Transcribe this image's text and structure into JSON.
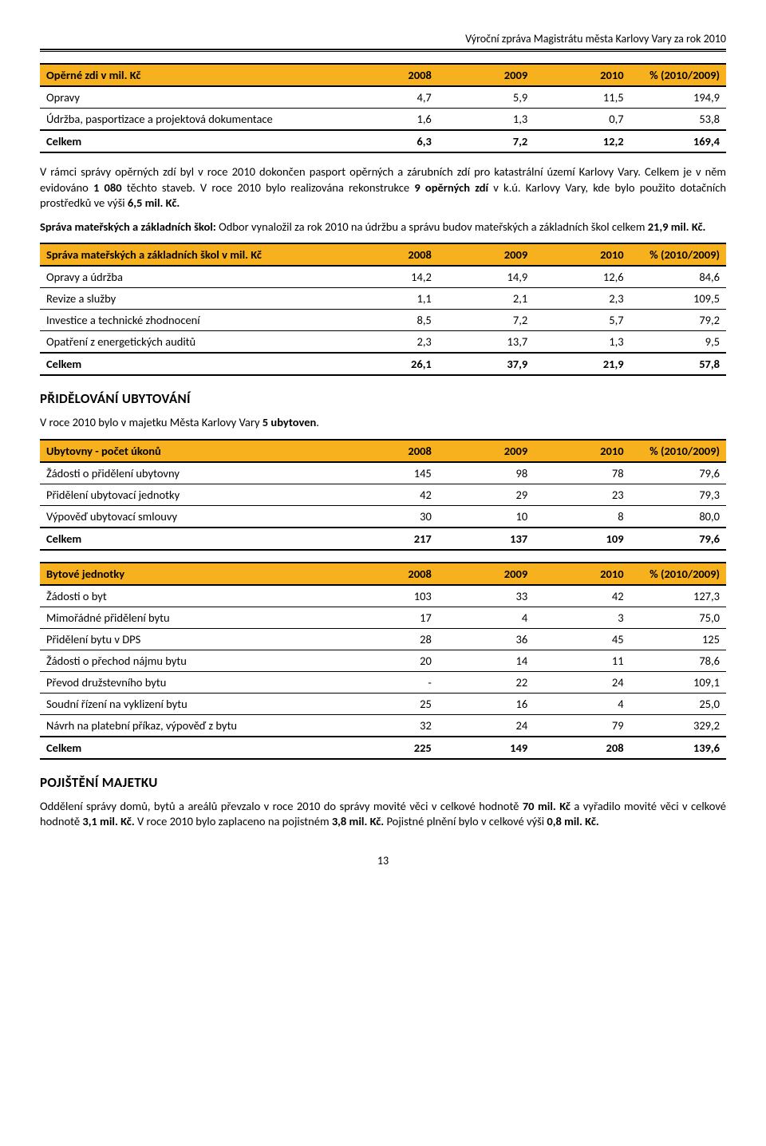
{
  "header": "Výroční zpráva Magistrátu města Karlovy Vary za rok 2010",
  "columns": [
    "2008",
    "2009",
    "2010",
    "% (2010/2009)"
  ],
  "table1": {
    "title": "Opěrné zdi v mil. Kč",
    "rows": [
      {
        "label": "Opravy",
        "v": [
          "4,7",
          "5,9",
          "11,5",
          "194,9"
        ]
      },
      {
        "label": "Údržba, pasportizace a projektová dokumentace",
        "v": [
          "1,6",
          "1,3",
          "0,7",
          "53,8"
        ]
      }
    ],
    "total": {
      "label": "Celkem",
      "v": [
        "6,3",
        "7,2",
        "12,2",
        "169,4"
      ]
    }
  },
  "para1": "V rámci správy opěrných zdí byl v roce 2010 dokončen pasport opěrných a zárubních zdí pro katastrální území Karlovy Vary. Celkem je v něm evidováno 1 080 těchto staveb. V roce 2010 bylo realizována rekonstrukce 9 opěrných zdí v k.ú. Karlovy Vary, kde bylo použito dotačních prostředků ve výši 6,5 mil. Kč.",
  "para2_a": "Správa mateřských a základních škol:",
  "para2_b": " Odbor vynaložil za rok 2010 na údržbu a správu budov mateřských a základních škol celkem ",
  "para2_c": "21,9 mil. Kč.",
  "table2": {
    "title": "Správa mateřských a základních škol v mil. Kč",
    "rows": [
      {
        "label": "Opravy a údržba",
        "v": [
          "14,2",
          "14,9",
          "12,6",
          "84,6"
        ]
      },
      {
        "label": "Revize a služby",
        "v": [
          "1,1",
          "2,1",
          "2,3",
          "109,5"
        ]
      },
      {
        "label": "Investice a technické zhodnocení",
        "v": [
          "8,5",
          "7,2",
          "5,7",
          "79,2"
        ]
      },
      {
        "label": "Opatření z energetických auditů",
        "v": [
          "2,3",
          "13,7",
          "1,3",
          "9,5"
        ]
      }
    ],
    "total": {
      "label": "Celkem",
      "v": [
        "26,1",
        "37,9",
        "21,9",
        "57,8"
      ]
    }
  },
  "heading1": "PŘIDĚLOVÁNÍ UBYTOVÁNÍ",
  "para3": "V roce 2010 bylo v majetku Města Karlovy Vary 5 ubytoven.",
  "table3": {
    "title": "Ubytovny - počet úkonů",
    "rows": [
      {
        "label": "Žádosti o přidělení ubytovny",
        "v": [
          "145",
          "98",
          "78",
          "79,6"
        ]
      },
      {
        "label": "Přidělení ubytovací jednotky",
        "v": [
          "42",
          "29",
          "23",
          "79,3"
        ]
      },
      {
        "label": "Výpověď ubytovací smlouvy",
        "v": [
          "30",
          "10",
          "8",
          "80,0"
        ]
      }
    ],
    "total": {
      "label": "Celkem",
      "v": [
        "217",
        "137",
        "109",
        "79,6"
      ]
    }
  },
  "table4": {
    "title": "Bytové jednotky",
    "rows": [
      {
        "label": "Žádosti o byt",
        "v": [
          "103",
          "33",
          "42",
          "127,3"
        ]
      },
      {
        "label": "Mimořádné přidělení bytu",
        "v": [
          "17",
          "4",
          "3",
          "75,0"
        ]
      },
      {
        "label": "Přidělení bytu v DPS",
        "v": [
          "28",
          "36",
          "45",
          "125"
        ]
      },
      {
        "label": "Žádosti o přechod nájmu bytu",
        "v": [
          "20",
          "14",
          "11",
          "78,6"
        ]
      },
      {
        "label": "Převod družstevního bytu",
        "v": [
          "-",
          "22",
          "24",
          "109,1"
        ]
      },
      {
        "label": "Soudní řízení na vyklizení bytu",
        "v": [
          "25",
          "16",
          "4",
          "25,0"
        ]
      },
      {
        "label": "Návrh na platební příkaz, výpověď z bytu",
        "v": [
          "32",
          "24",
          "79",
          "329,2"
        ]
      }
    ],
    "total": {
      "label": "Celkem",
      "v": [
        "225",
        "149",
        "208",
        "139,6"
      ]
    }
  },
  "heading2": "POJIŠTĚNÍ MAJETKU",
  "para4_parts": [
    {
      "t": "Oddělení správy domů, bytů a areálů převzalo v roce 2010 do správy movité věci v celkové hodnotě ",
      "b": false
    },
    {
      "t": "70 mil. Kč",
      "b": true
    },
    {
      "t": " a vyřadilo movité věci v celkové hodnotě ",
      "b": false
    },
    {
      "t": "3,1 mil. Kč.",
      "b": true
    },
    {
      "t": " V roce 2010 bylo zaplaceno na pojistném ",
      "b": false
    },
    {
      "t": "3,8 mil. Kč.",
      "b": true
    },
    {
      "t": " Pojistné plnění bylo v celkové výši ",
      "b": false
    },
    {
      "t": "0,8 mil. Kč.",
      "b": true
    }
  ],
  "page": "13"
}
